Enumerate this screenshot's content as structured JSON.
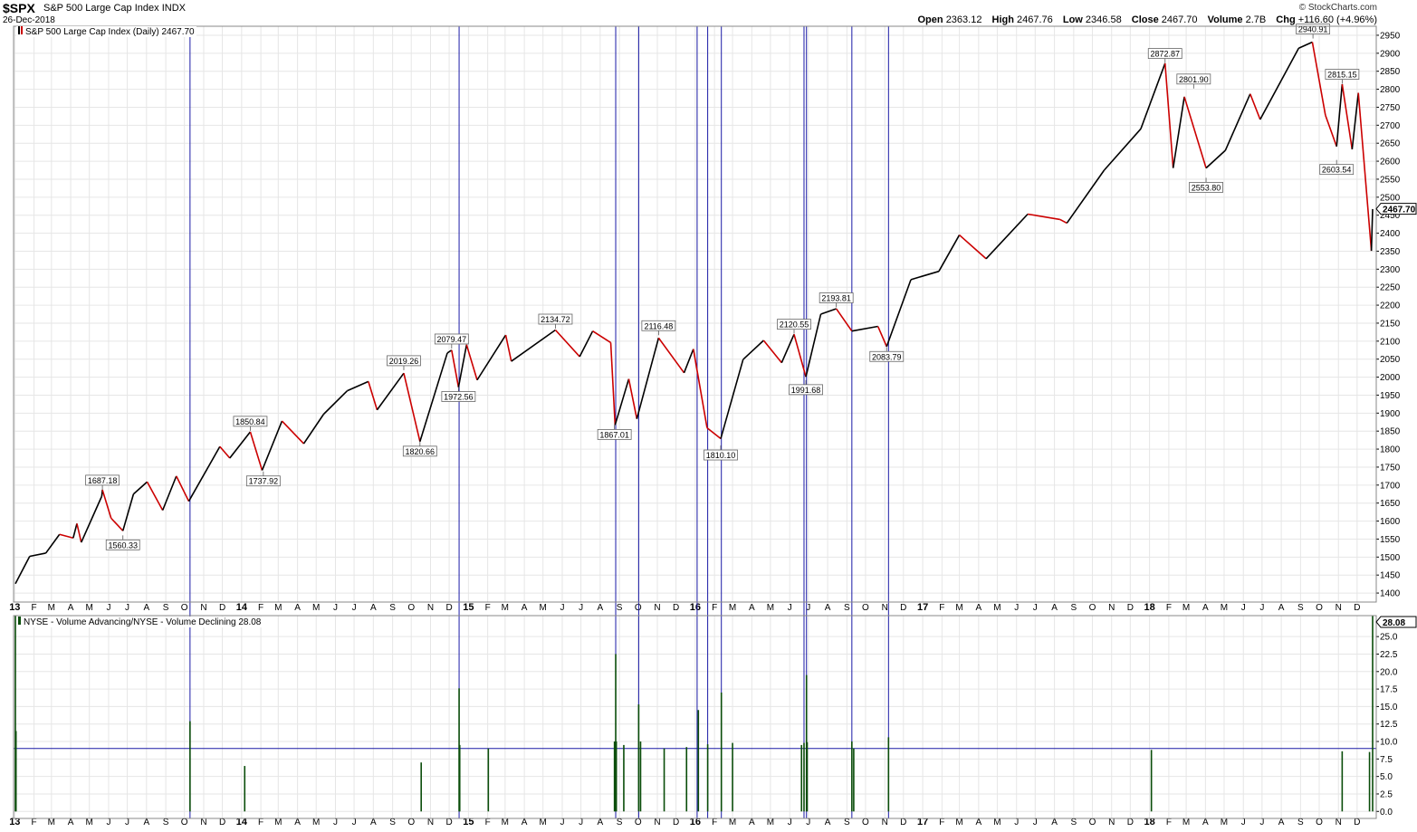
{
  "header": {
    "symbol": "$SPX",
    "name": "S&P 500 Large Cap Index",
    "exchange": "INDX",
    "date": "26-Dec-2018",
    "brand": "© StockCharts.com",
    "open_label": "Open",
    "open": "2363.12",
    "high_label": "High",
    "high": "2467.76",
    "low_label": "Low",
    "low": "2346.58",
    "close_label": "Close",
    "close": "2467.70",
    "volume_label": "Volume",
    "volume": "2.7B",
    "chg_label": "Chg",
    "chg": "+116.60 (+4.96%)"
  },
  "colors": {
    "price_up": "#000000",
    "price_down": "#cc0000",
    "volume_bar": "#0a4d0a",
    "marker_line": "#1a1aa6",
    "grid": "#e6e6e6"
  },
  "chart_data": [
    {
      "type": "line",
      "legend": "S&P 500 Large Cap Index (Daily) 2467.70",
      "last_value_tag": "2467.70",
      "ylim": [
        1375,
        2975
      ],
      "yticks": [
        1400,
        1450,
        1500,
        1550,
        1600,
        1650,
        1700,
        1750,
        1800,
        1850,
        1900,
        1950,
        2000,
        2050,
        2100,
        2150,
        2200,
        2250,
        2300,
        2350,
        2400,
        2450,
        2500,
        2550,
        2600,
        2650,
        2700,
        2750,
        2800,
        2850,
        2900,
        2950
      ],
      "xlim": [
        "2013-01-02",
        "2018-12-26"
      ],
      "x_tick_labels": [
        {
          "date": "2013-01-01",
          "label": "13"
        },
        {
          "date": "2013-02-01",
          "label": "F"
        },
        {
          "date": "2013-03-01",
          "label": "M"
        },
        {
          "date": "2013-04-01",
          "label": "A"
        },
        {
          "date": "2013-05-01",
          "label": "M"
        },
        {
          "date": "2013-06-01",
          "label": "J"
        },
        {
          "date": "2013-07-01",
          "label": "J"
        },
        {
          "date": "2013-08-01",
          "label": "A"
        },
        {
          "date": "2013-09-01",
          "label": "S"
        },
        {
          "date": "2013-10-01",
          "label": "O"
        },
        {
          "date": "2013-11-01",
          "label": "N"
        },
        {
          "date": "2013-12-01",
          "label": "D"
        },
        {
          "date": "2014-01-01",
          "label": "14"
        },
        {
          "date": "2014-02-01",
          "label": "F"
        },
        {
          "date": "2014-03-01",
          "label": "M"
        },
        {
          "date": "2014-04-01",
          "label": "A"
        },
        {
          "date": "2014-05-01",
          "label": "M"
        },
        {
          "date": "2014-06-01",
          "label": "J"
        },
        {
          "date": "2014-07-01",
          "label": "J"
        },
        {
          "date": "2014-08-01",
          "label": "A"
        },
        {
          "date": "2014-09-01",
          "label": "S"
        },
        {
          "date": "2014-10-01",
          "label": "O"
        },
        {
          "date": "2014-11-01",
          "label": "N"
        },
        {
          "date": "2014-12-01",
          "label": "D"
        },
        {
          "date": "2015-01-01",
          "label": "15"
        },
        {
          "date": "2015-02-01",
          "label": "F"
        },
        {
          "date": "2015-03-01",
          "label": "M"
        },
        {
          "date": "2015-04-01",
          "label": "A"
        },
        {
          "date": "2015-05-01",
          "label": "M"
        },
        {
          "date": "2015-06-01",
          "label": "J"
        },
        {
          "date": "2015-07-01",
          "label": "J"
        },
        {
          "date": "2015-08-01",
          "label": "A"
        },
        {
          "date": "2015-09-01",
          "label": "S"
        },
        {
          "date": "2015-10-01",
          "label": "O"
        },
        {
          "date": "2015-11-01",
          "label": "N"
        },
        {
          "date": "2015-12-01",
          "label": "D"
        },
        {
          "date": "2016-01-01",
          "label": "16"
        },
        {
          "date": "2016-02-01",
          "label": "F"
        },
        {
          "date": "2016-03-01",
          "label": "M"
        },
        {
          "date": "2016-04-01",
          "label": "A"
        },
        {
          "date": "2016-05-01",
          "label": "M"
        },
        {
          "date": "2016-06-01",
          "label": "J"
        },
        {
          "date": "2016-07-01",
          "label": "J"
        },
        {
          "date": "2016-08-01",
          "label": "A"
        },
        {
          "date": "2016-09-01",
          "label": "S"
        },
        {
          "date": "2016-10-01",
          "label": "O"
        },
        {
          "date": "2016-11-01",
          "label": "N"
        },
        {
          "date": "2016-12-01",
          "label": "D"
        },
        {
          "date": "2017-01-01",
          "label": "17"
        },
        {
          "date": "2017-02-01",
          "label": "F"
        },
        {
          "date": "2017-03-01",
          "label": "M"
        },
        {
          "date": "2017-04-01",
          "label": "A"
        },
        {
          "date": "2017-05-01",
          "label": "M"
        },
        {
          "date": "2017-06-01",
          "label": "J"
        },
        {
          "date": "2017-07-01",
          "label": "J"
        },
        {
          "date": "2017-08-01",
          "label": "A"
        },
        {
          "date": "2017-09-01",
          "label": "S"
        },
        {
          "date": "2017-10-01",
          "label": "O"
        },
        {
          "date": "2017-11-01",
          "label": "N"
        },
        {
          "date": "2017-12-01",
          "label": "D"
        },
        {
          "date": "2018-01-01",
          "label": "18"
        },
        {
          "date": "2018-02-01",
          "label": "F"
        },
        {
          "date": "2018-03-01",
          "label": "M"
        },
        {
          "date": "2018-04-01",
          "label": "A"
        },
        {
          "date": "2018-05-01",
          "label": "M"
        },
        {
          "date": "2018-06-01",
          "label": "J"
        },
        {
          "date": "2018-07-01",
          "label": "J"
        },
        {
          "date": "2018-08-01",
          "label": "A"
        },
        {
          "date": "2018-09-01",
          "label": "S"
        },
        {
          "date": "2018-10-01",
          "label": "O"
        },
        {
          "date": "2018-11-01",
          "label": "N"
        },
        {
          "date": "2018-12-01",
          "label": "D"
        }
      ],
      "points": [
        [
          "2013-01-02",
          1426
        ],
        [
          "2013-01-25",
          1502
        ],
        [
          "2013-02-20",
          1511
        ],
        [
          "2013-03-14",
          1563
        ],
        [
          "2013-04-05",
          1553
        ],
        [
          "2013-04-11",
          1593
        ],
        [
          "2013-04-18",
          1541
        ],
        [
          "2013-05-21",
          1669
        ],
        [
          "2013-05-22",
          1687
        ],
        [
          "2013-06-05",
          1608
        ],
        [
          "2013-06-24",
          1573
        ],
        [
          "2013-07-11",
          1675
        ],
        [
          "2013-08-02",
          1709
        ],
        [
          "2013-08-27",
          1630
        ],
        [
          "2013-09-18",
          1725
        ],
        [
          "2013-10-08",
          1655
        ],
        [
          "2013-11-27",
          1807
        ],
        [
          "2013-12-13",
          1775
        ],
        [
          "2014-01-15",
          1848
        ],
        [
          "2014-02-03",
          1741
        ],
        [
          "2014-03-07",
          1878
        ],
        [
          "2014-04-11",
          1815
        ],
        [
          "2014-05-13",
          1897
        ],
        [
          "2014-06-20",
          1962
        ],
        [
          "2014-07-24",
          1988
        ],
        [
          "2014-08-07",
          1909
        ],
        [
          "2014-09-19",
          2011
        ],
        [
          "2014-10-15",
          1821
        ],
        [
          "2014-11-28",
          2067
        ],
        [
          "2014-12-05",
          2075
        ],
        [
          "2014-12-16",
          1972
        ],
        [
          "2014-12-29",
          2090
        ],
        [
          "2015-01-15",
          1992
        ],
        [
          "2015-03-02",
          2117
        ],
        [
          "2015-03-11",
          2044
        ],
        [
          "2015-05-21",
          2131
        ],
        [
          "2015-06-29",
          2057
        ],
        [
          "2015-07-20",
          2128
        ],
        [
          "2015-08-18",
          2096
        ],
        [
          "2015-08-25",
          1867
        ],
        [
          "2015-09-16",
          1995
        ],
        [
          "2015-09-29",
          1884
        ],
        [
          "2015-11-03",
          2109
        ],
        [
          "2015-12-14",
          2012
        ],
        [
          "2015-12-29",
          2078
        ],
        [
          "2016-01-20",
          1859
        ],
        [
          "2016-02-11",
          1829
        ],
        [
          "2016-03-18",
          2049
        ],
        [
          "2016-04-20",
          2102
        ],
        [
          "2016-05-19",
          2040
        ],
        [
          "2016-06-08",
          2119
        ],
        [
          "2016-06-27",
          2001
        ],
        [
          "2016-07-21",
          2175
        ],
        [
          "2016-08-15",
          2190
        ],
        [
          "2016-09-09",
          2128
        ],
        [
          "2016-10-21",
          2141
        ],
        [
          "2016-11-04",
          2085
        ],
        [
          "2016-12-13",
          2271
        ],
        [
          "2017-01-27",
          2294
        ],
        [
          "2017-03-01",
          2395
        ],
        [
          "2017-04-13",
          2329
        ],
        [
          "2017-06-19",
          2453
        ],
        [
          "2017-08-10",
          2438
        ],
        [
          "2017-08-21",
          2428
        ],
        [
          "2017-10-20",
          2575
        ],
        [
          "2017-12-18",
          2690
        ],
        [
          "2018-01-26",
          2872
        ],
        [
          "2018-02-08",
          2581
        ],
        [
          "2018-02-26",
          2779
        ],
        [
          "2018-04-02",
          2581
        ],
        [
          "2018-05-03",
          2630
        ],
        [
          "2018-06-12",
          2787
        ],
        [
          "2018-06-28",
          2716
        ],
        [
          "2018-08-29",
          2914
        ],
        [
          "2018-09-20",
          2931
        ],
        [
          "2018-10-11",
          2728
        ],
        [
          "2018-10-29",
          2641
        ],
        [
          "2018-11-07",
          2814
        ],
        [
          "2018-11-23",
          2633
        ],
        [
          "2018-12-03",
          2790
        ],
        [
          "2018-12-24",
          2351
        ],
        [
          "2018-12-26",
          2467
        ]
      ],
      "annotations": [
        {
          "date": "2013-05-22",
          "value": 1687.18,
          "label": "1687.18",
          "pos": "above"
        },
        {
          "date": "2013-06-24",
          "value": 1560.33,
          "label": "1560.33",
          "pos": "below"
        },
        {
          "date": "2014-01-15",
          "value": 1850.84,
          "label": "1850.84",
          "pos": "above"
        },
        {
          "date": "2014-02-05",
          "value": 1737.92,
          "label": "1737.92",
          "pos": "below"
        },
        {
          "date": "2014-09-19",
          "value": 2019.26,
          "label": "2019.26",
          "pos": "above"
        },
        {
          "date": "2014-10-15",
          "value": 1820.66,
          "label": "1820.66",
          "pos": "below"
        },
        {
          "date": "2014-12-05",
          "value": 2079.47,
          "label": "2079.47",
          "pos": "above"
        },
        {
          "date": "2014-12-16",
          "value": 1972.56,
          "label": "1972.56",
          "pos": "below"
        },
        {
          "date": "2015-05-21",
          "value": 2134.72,
          "label": "2134.72",
          "pos": "above"
        },
        {
          "date": "2015-08-24",
          "value": 1867.01,
          "label": "1867.01",
          "pos": "below"
        },
        {
          "date": "2015-11-03",
          "value": 2116.48,
          "label": "2116.48",
          "pos": "above"
        },
        {
          "date": "2016-02-11",
          "value": 1810.1,
          "label": "1810.10",
          "pos": "below"
        },
        {
          "date": "2016-06-08",
          "value": 2120.55,
          "label": "2120.55",
          "pos": "above"
        },
        {
          "date": "2016-06-27",
          "value": 1991.68,
          "label": "1991.68",
          "pos": "below"
        },
        {
          "date": "2016-08-15",
          "value": 2193.81,
          "label": "2193.81",
          "pos": "above"
        },
        {
          "date": "2016-11-04",
          "value": 2083.79,
          "label": "2083.79",
          "pos": "below"
        },
        {
          "date": "2018-01-26",
          "value": 2872.87,
          "label": "2872.87",
          "pos": "above"
        },
        {
          "date": "2018-03-13",
          "value": 2801.9,
          "label": "2801.90",
          "pos": "above"
        },
        {
          "date": "2018-04-02",
          "value": 2553.8,
          "label": "2553.80",
          "pos": "below"
        },
        {
          "date": "2018-09-21",
          "value": 2940.91,
          "label": "2940.91",
          "pos": "above"
        },
        {
          "date": "2018-11-07",
          "value": 2815.15,
          "label": "2815.15",
          "pos": "above"
        },
        {
          "date": "2018-10-29",
          "value": 2603.54,
          "label": "2603.54",
          "pos": "below"
        }
      ]
    },
    {
      "type": "bar",
      "legend": "NYSE - Volume Advancing/NYSE - Volume Declining 28.08",
      "last_value_tag": "28.08",
      "ylim": [
        -1,
        28
      ],
      "yticks": [
        0.0,
        2.5,
        5.0,
        7.5,
        10.0,
        12.5,
        15.0,
        17.5,
        20.0,
        22.5,
        25.0
      ],
      "ytick_labels": [
        "0.0",
        "2.5",
        "5.0",
        "7.5",
        "10.0",
        "12.5",
        "15.0",
        "17.5",
        "20.0",
        "22.5",
        "25.0"
      ],
      "threshold": 9,
      "spikes": [
        [
          "2013-01-02",
          28.08
        ],
        [
          "2013-01-03",
          11.5
        ],
        [
          "2013-10-10",
          12.9
        ],
        [
          "2014-01-06",
          6.5
        ],
        [
          "2014-10-17",
          7.0
        ],
        [
          "2014-12-17",
          17.6
        ],
        [
          "2014-12-18",
          9.5
        ],
        [
          "2015-02-02",
          9.0
        ],
        [
          "2015-08-24",
          10.0
        ],
        [
          "2015-08-26",
          22.5
        ],
        [
          "2015-08-27",
          10.0
        ],
        [
          "2015-09-08",
          9.5
        ],
        [
          "2015-10-02",
          15.3
        ],
        [
          "2015-10-05",
          10.0
        ],
        [
          "2015-11-12",
          9.0
        ],
        [
          "2015-12-18",
          9.2
        ],
        [
          "2016-01-06",
          14.5
        ],
        [
          "2016-01-21",
          9.6
        ],
        [
          "2016-02-12",
          17.0
        ],
        [
          "2016-03-01",
          9.8
        ],
        [
          "2016-06-20",
          9.5
        ],
        [
          "2016-06-24",
          9.8
        ],
        [
          "2016-06-28",
          19.5
        ],
        [
          "2016-06-29",
          9.9
        ],
        [
          "2016-09-09",
          10.0
        ],
        [
          "2016-09-12",
          9.0
        ],
        [
          "2016-11-07",
          10.6
        ],
        [
          "2018-01-04",
          8.8
        ],
        [
          "2018-11-07",
          8.6
        ],
        [
          "2018-12-21",
          8.5
        ],
        [
          "2018-12-26",
          28.08
        ]
      ]
    }
  ],
  "event_lines": [
    "2013-10-10",
    "2014-12-17",
    "2015-08-26",
    "2015-10-02",
    "2016-01-04",
    "2016-01-21",
    "2016-02-12",
    "2016-06-24",
    "2016-06-28",
    "2016-09-09",
    "2016-11-07"
  ]
}
